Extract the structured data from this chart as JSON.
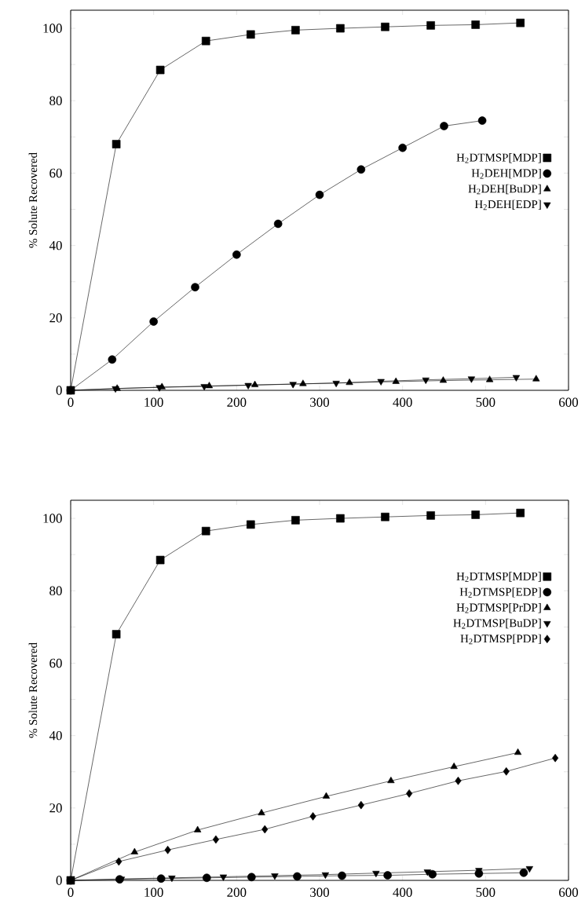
{
  "chart_data": [
    {
      "type": "line",
      "ylabel": "% Solute Recovered",
      "xlim": [
        0,
        600
      ],
      "ylim": [
        0,
        105
      ],
      "xticks": [
        0,
        100,
        200,
        300,
        400,
        500,
        600
      ],
      "yticks": [
        0,
        {
          "value": 10,
          "label": null
        },
        20,
        {
          "value": 30,
          "label": null
        },
        40,
        {
          "value": 50,
          "label": null
        },
        60,
        {
          "value": 70,
          "label": null
        },
        80,
        {
          "value": 90,
          "label": null
        },
        100
      ],
      "legend": "right",
      "line_style": "solid",
      "series": [
        {
          "name": "H$_{2}$DTMSP[MDP]",
          "color": "#000000",
          "marker": "square",
          "x": [
            0,
            55,
            108,
            163,
            217,
            271,
            325,
            379,
            434,
            488,
            542
          ],
          "values": [
            0,
            68,
            88.5,
            96.5,
            98.3,
            99.5,
            100,
            100.4,
            100.8,
            101,
            101.5
          ]
        },
        {
          "name": "H$_{2}$DEH[MDP]",
          "color": "#000000",
          "marker": "circle",
          "x": [
            0,
            50,
            100,
            150,
            200,
            250,
            300,
            350,
            400,
            450,
            496
          ],
          "values": [
            0,
            8.5,
            19,
            28.5,
            37.5,
            46,
            54,
            61,
            67,
            73,
            74.5
          ]
        },
        {
          "name": "H$_{2}$DEH[BuDP]",
          "color": "#000000",
          "marker": "triangle",
          "x": [
            0,
            56,
            110,
            167,
            222,
            280,
            336,
            392,
            449,
            505,
            561
          ],
          "values": [
            0,
            0.5,
            0.9,
            1.2,
            1.5,
            1.8,
            2.1,
            2.4,
            2.7,
            2.9,
            3.1
          ]
        },
        {
          "name": "H$_{2}$DEH[EDP]",
          "color": "#000000",
          "marker": "triangle-down",
          "x": [
            0,
            54,
            107,
            161,
            214,
            268,
            320,
            374,
            428,
            483,
            537
          ],
          "values": [
            0,
            0.5,
            0.8,
            1.1,
            1.4,
            1.7,
            2.0,
            2.5,
            2.9,
            3.2,
            3.6
          ]
        }
      ]
    },
    {
      "type": "line",
      "ylabel": "% Solute Recovered",
      "xlim": [
        0,
        600
      ],
      "ylim": [
        0,
        105
      ],
      "xticks": [
        0,
        100,
        200,
        300,
        400,
        500,
        600
      ],
      "yticks": [
        0,
        {
          "value": 10,
          "label": null
        },
        20,
        {
          "value": 30,
          "label": null
        },
        40,
        {
          "value": 50,
          "label": null
        },
        60,
        {
          "value": 70,
          "label": null
        },
        80,
        {
          "value": 90,
          "label": null
        },
        100
      ],
      "legend": "top right",
      "line_style": "solid",
      "series": [
        {
          "name": "H$_{2}$DTMSP[MDP]",
          "color": "#000000",
          "marker": "square",
          "x": [
            0,
            55,
            108,
            163,
            217,
            271,
            325,
            379,
            434,
            488,
            542
          ],
          "values": [
            0,
            68,
            88.5,
            96.5,
            98.3,
            99.5,
            100,
            100.4,
            100.8,
            101,
            101.5
          ]
        },
        {
          "name": "H$_{2}$DTMSP[EDP]",
          "color": "#000000",
          "marker": "circle",
          "x": [
            0,
            59,
            109,
            164,
            218,
            273,
            327,
            382,
            436,
            492,
            546
          ],
          "values": [
            0,
            0.3,
            0.5,
            0.7,
            0.9,
            1.1,
            1.3,
            1.4,
            1.7,
            1.9,
            2.1
          ]
        },
        {
          "name": "H$_{2}$DTMSP[PrDP]",
          "color": "#000000",
          "marker": "triangle",
          "x": [
            0,
            77,
            153,
            230,
            308,
            386,
            462,
            539
          ],
          "values": [
            0,
            7.8,
            13.9,
            18.6,
            23.2,
            27.5,
            31.4,
            35.3
          ]
        },
        {
          "name": "H$_{2}$DTMSP[BuDP]",
          "color": "#000000",
          "marker": "triangle-down",
          "x": [
            0,
            61,
            122,
            184,
            246,
            307,
            368,
            430,
            492,
            553
          ],
          "values": [
            0,
            0.4,
            0.7,
            1.0,
            1.3,
            1.6,
            2.0,
            2.4,
            2.8,
            3.3
          ]
        },
        {
          "name": "H$_{2}$DTMSP[PDP]",
          "color": "#000000",
          "marker": "diamond",
          "x": [
            0,
            58,
            117,
            175,
            234,
            292,
            350,
            408,
            467,
            525,
            584
          ],
          "values": [
            0,
            5.2,
            8.4,
            11.3,
            14.1,
            17.7,
            20.8,
            24.0,
            27.5,
            30.1,
            33.8
          ]
        }
      ]
    }
  ]
}
